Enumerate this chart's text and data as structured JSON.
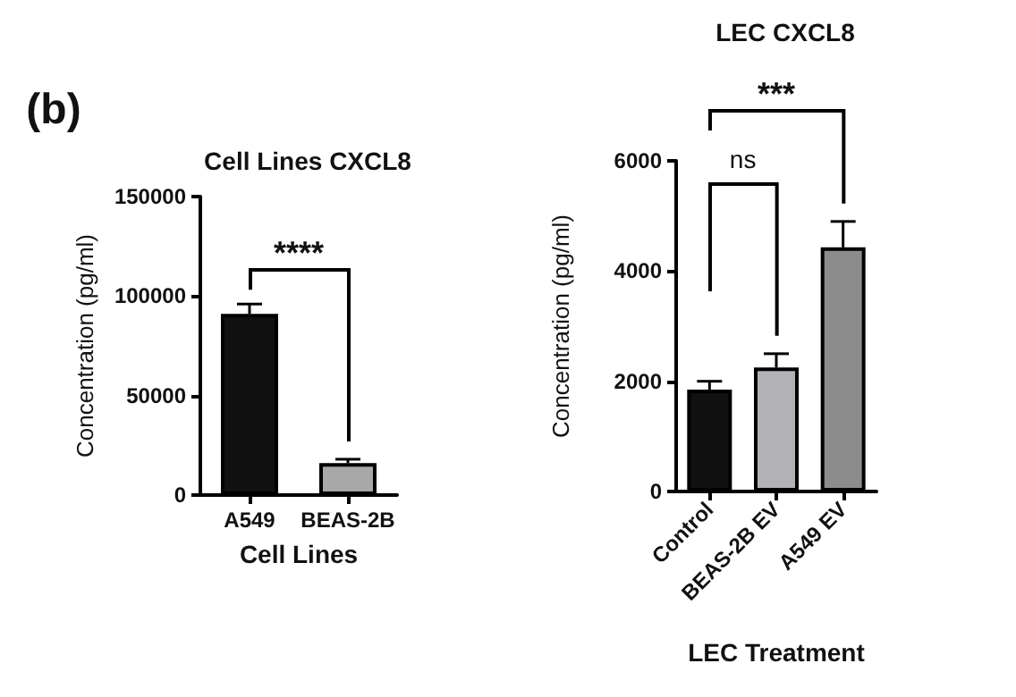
{
  "chart_data": [
    {
      "type": "bar",
      "title": "Cell Lines CXCL8",
      "xlabel": "Cell Lines",
      "ylabel": "Concentration (pg/ml)",
      "categories": [
        "A549",
        "BEAS-2B"
      ],
      "values": [
        91000,
        16000
      ],
      "colors": [
        "#111111",
        "#a8a8a8"
      ],
      "errors": [
        [
          91000,
          96000
        ],
        [
          16000,
          18000
        ]
      ],
      "ylim": [
        0,
        150000
      ],
      "yticks": [
        0,
        50000,
        100000,
        150000
      ],
      "annotations": [
        "(b)",
        "****"
      ]
    },
    {
      "type": "bar",
      "title": "LEC CXCL8",
      "xlabel": "LEC Treatment",
      "ylabel": "Concentration (pg/ml)",
      "categories": [
        "Control",
        "BEAS-2B EV",
        "A549 EV"
      ],
      "values": [
        1850,
        2250,
        4430
      ],
      "colors": [
        "#111111",
        "#b2b2b6",
        "#8c8c8c"
      ],
      "errors": [
        [
          1850,
          2000
        ],
        [
          2250,
          2500
        ],
        [
          4430,
          4900
        ]
      ],
      "ylim": [
        0,
        6000
      ],
      "yticks": [
        0,
        2000,
        4000,
        6000
      ],
      "annotations": [
        "ns",
        "***"
      ]
    }
  ]
}
